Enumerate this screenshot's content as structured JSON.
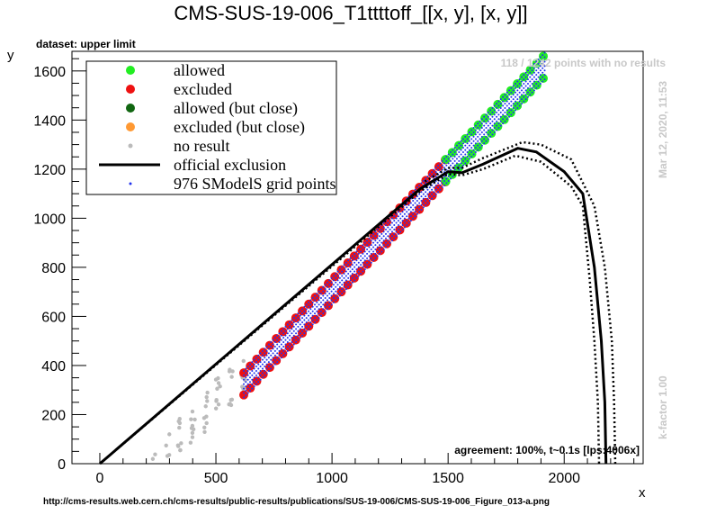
{
  "chart_data": {
    "type": "scatter",
    "title": "CMS-SUS-19-006_T1ttttoff_[[x, y], [x, y]]",
    "subtitle": "dataset: upper limit",
    "xlabel": "x",
    "ylabel": "y",
    "xlim": [
      -120,
      2340
    ],
    "ylim": [
      0,
      1680
    ],
    "xticks": [
      0,
      500,
      1000,
      1500,
      2000
    ],
    "yticks": [
      0,
      200,
      400,
      600,
      800,
      1000,
      1200,
      1400,
      1600
    ],
    "legend_position": "top-left",
    "legend": [
      {
        "label": "allowed",
        "color": "#22ee22",
        "marker": "circle"
      },
      {
        "label": "excluded",
        "color": "#ee1111",
        "marker": "circle"
      },
      {
        "label": "allowed (but close)",
        "color": "#116611",
        "marker": "circle"
      },
      {
        "label": "excluded (but close)",
        "color": "#ff9933",
        "marker": "circle"
      },
      {
        "label": "no result",
        "color": "#bbbbbb",
        "marker": "dot"
      },
      {
        "label": "official exclusion",
        "color": "#000000",
        "marker": "line"
      },
      {
        "label": "976 SModelS grid points",
        "color": "#2233ee",
        "marker": "small-dot"
      }
    ],
    "annotations": {
      "no_results": "118 / 1242 points with no results",
      "timestamp": "Mar 12, 2020, 11:53",
      "kfactor": "k-factor 1.00",
      "agreement": "agreement: 100%, t~0.1s [lps:4006x]",
      "url": "http://cms-results.web.cern.ch/cms-results/public-results/publications/SUS-19-006/CMS-SUS-19-006_Figure_013-a.png"
    },
    "official_exclusion": [
      [
        0,
        0
      ],
      [
        1380,
        1120
      ],
      [
        1500,
        1190
      ],
      [
        1560,
        1185
      ],
      [
        1650,
        1220
      ],
      [
        1800,
        1285
      ],
      [
        1880,
        1270
      ],
      [
        2000,
        1190
      ],
      [
        2080,
        1100
      ],
      [
        2130,
        800
      ],
      [
        2160,
        500
      ],
      [
        2175,
        250
      ],
      [
        2180,
        0
      ]
    ],
    "exclusion_minus": [
      [
        0,
        0
      ],
      [
        1380,
        1110
      ],
      [
        1500,
        1180
      ],
      [
        1560,
        1175
      ],
      [
        1650,
        1200
      ],
      [
        1790,
        1255
      ],
      [
        1900,
        1230
      ],
      [
        2030,
        1130
      ],
      [
        2080,
        1050
      ],
      [
        2110,
        750
      ],
      [
        2130,
        500
      ],
      [
        2145,
        250
      ],
      [
        2150,
        0
      ]
    ],
    "exclusion_plus": [
      [
        1400,
        1150
      ],
      [
        1500,
        1205
      ],
      [
        1560,
        1205
      ],
      [
        1650,
        1245
      ],
      [
        1820,
        1310
      ],
      [
        1900,
        1300
      ],
      [
        2030,
        1240
      ],
      [
        2130,
        1050
      ],
      [
        2175,
        800
      ],
      [
        2205,
        500
      ],
      [
        2215,
        250
      ],
      [
        2220,
        0
      ]
    ],
    "grid_bands": {
      "excluded": {
        "x_start": 620,
        "x_end": 1490,
        "y_offset_min": -340,
        "y_offset_max": -250
      },
      "allowed": {
        "x_start": 1490,
        "x_end": 1920,
        "y_offset_min": -340,
        "y_offset_max": -250
      },
      "no_result": {
        "x_start": 180,
        "x_end": 620,
        "y_offset_min": -330,
        "y_offset_max": -160
      }
    }
  }
}
